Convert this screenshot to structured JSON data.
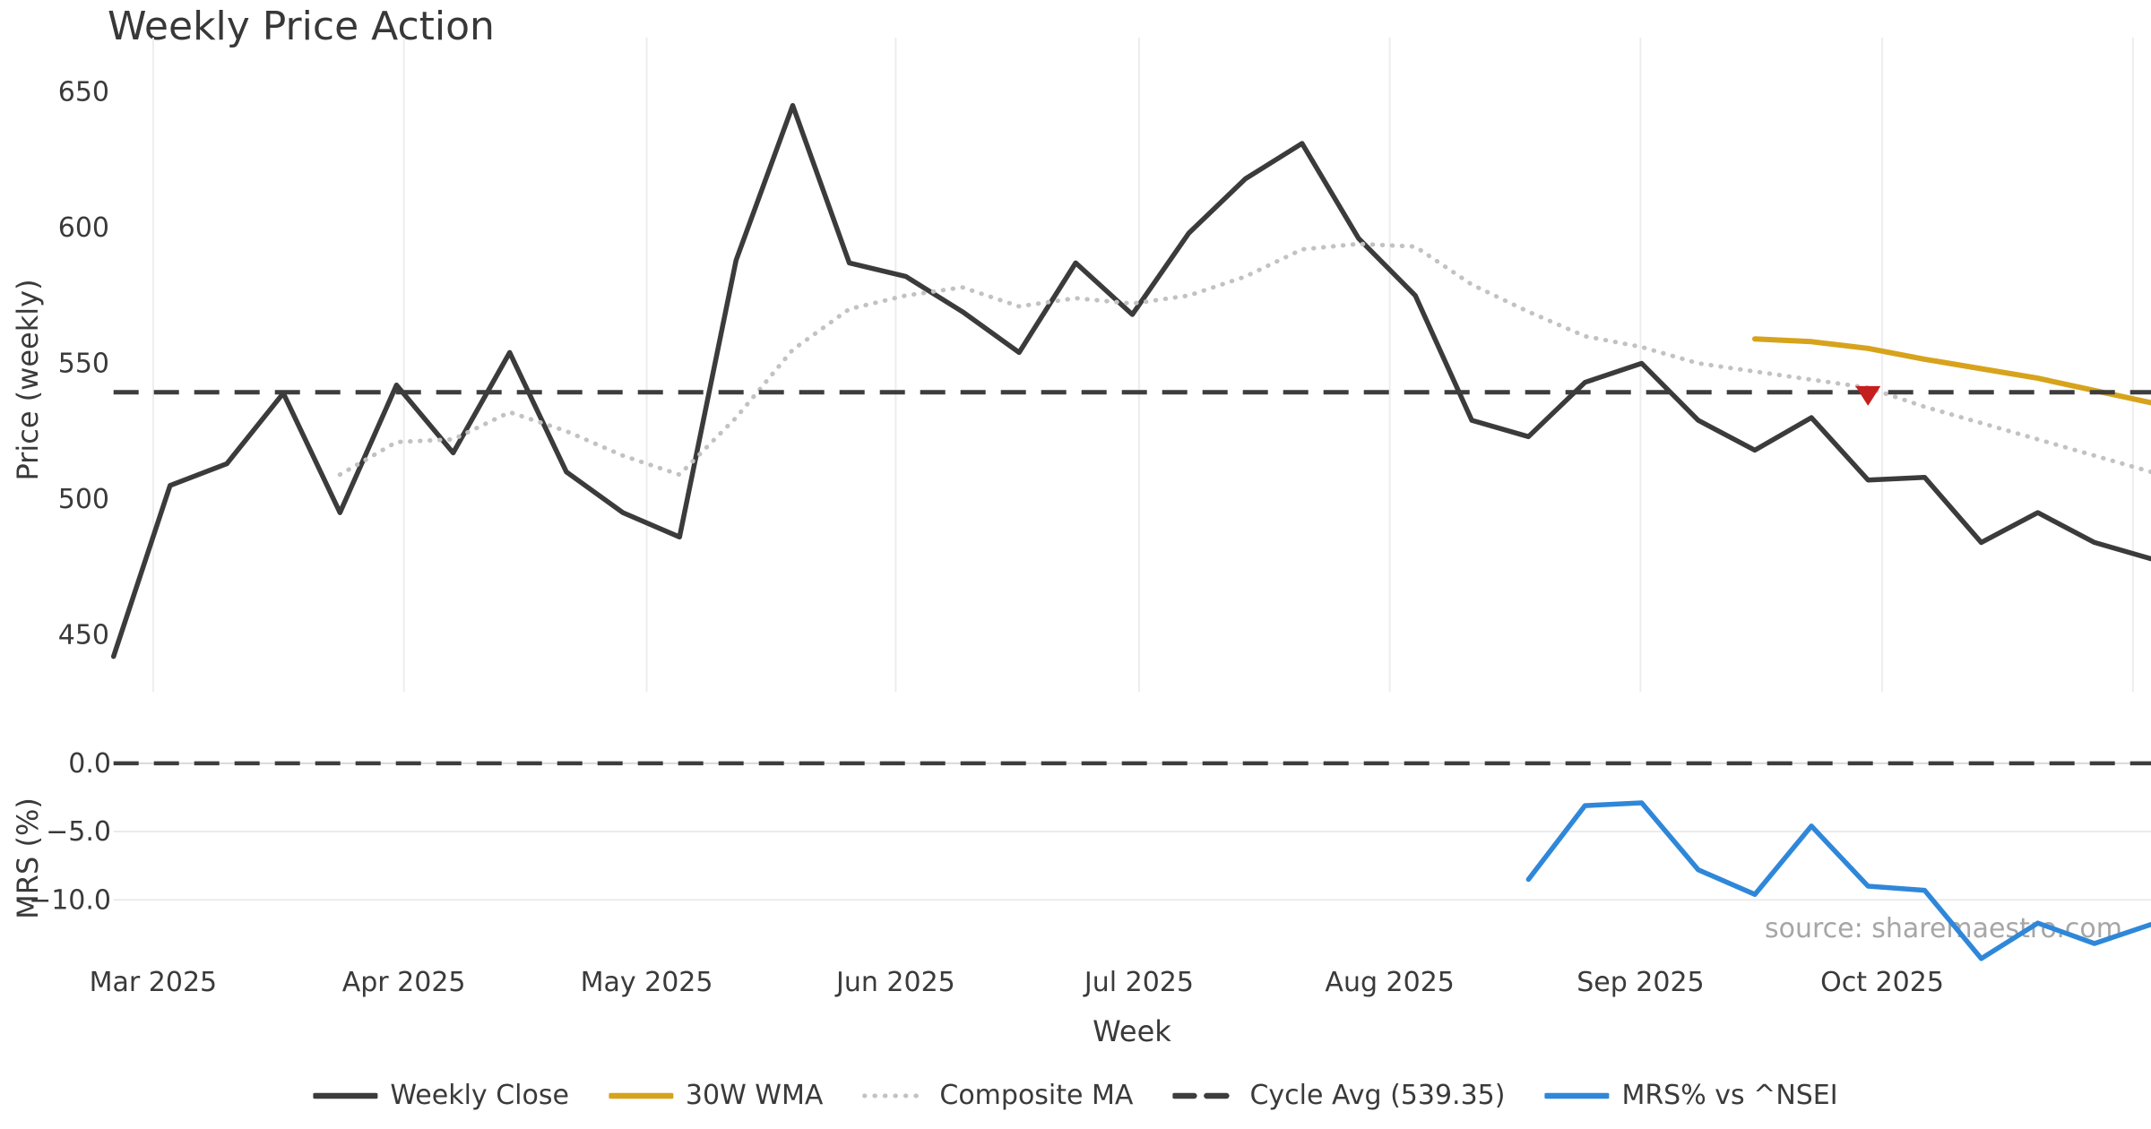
{
  "title": "Weekly Price Action",
  "source_note": "source: sharemaestro.com",
  "axes": {
    "price_label": "Price (weekly)",
    "mrs_label": "MRS (%)",
    "x_label": "Week"
  },
  "colors": {
    "weekly_close": "#3b3b3b",
    "wma30": "#d7a31c",
    "composite_ma": "#c2c2c2",
    "cycle_avg": "#3d3d3d",
    "mrs": "#2f87d9",
    "marker": "#c51f1f",
    "gridline": "#ededf1",
    "mrs_gridline": "#ebebeb",
    "mrs_zero_gridline": "#d9d9d9",
    "tick_text": "#3a3a3a"
  },
  "chart_data": {
    "type": "line",
    "title": "Weekly Price Action",
    "xlabel": "Week",
    "ylabel_price": "Price (weekly)",
    "ylabel_mrs": "MRS (%)",
    "weeks_total": 37,
    "x_ticks": [
      {
        "label": "Mar 2025",
        "week": 0.7
      },
      {
        "label": "Apr 2025",
        "week": 5.13
      },
      {
        "label": "May 2025",
        "week": 9.42
      },
      {
        "label": "Jun 2025",
        "week": 13.82
      },
      {
        "label": "Jul 2025",
        "week": 18.12
      },
      {
        "label": "Aug 2025",
        "week": 22.55
      },
      {
        "label": "Sep 2025",
        "week": 26.98
      },
      {
        "label": "Oct 2025",
        "week": 31.25
      }
    ],
    "x_extra_gridline_week": 35.68,
    "price_ticks": [
      {
        "label": "450",
        "value": 450
      },
      {
        "label": "500",
        "value": 500
      },
      {
        "label": "550",
        "value": 550
      },
      {
        "label": "600",
        "value": 600
      },
      {
        "label": "650",
        "value": 650
      }
    ],
    "price_axis_range": [
      429,
      670
    ],
    "mrs_ticks": [
      {
        "label": "0.0",
        "value": 0
      },
      {
        "label": "−5.0",
        "value": -5
      },
      {
        "label": "−10.0",
        "value": -10
      }
    ],
    "mrs_axis_range": [
      -15.1,
      3.4
    ],
    "cycle_avg": 539.35,
    "mrs_zero_dashed": true,
    "legend_position": "bottom-center",
    "grid": {
      "main_vertical": true,
      "mrs_horizontal": true
    },
    "series": [
      {
        "name": "Weekly Close",
        "style": "solid",
        "color_key": "weekly_close",
        "subplot": "main",
        "start_week": 0,
        "values": [
          442,
          505,
          513,
          539,
          495,
          542,
          517,
          554,
          510,
          495,
          486,
          588,
          645,
          587,
          582,
          569,
          554,
          587,
          568,
          598,
          618,
          631,
          596,
          575,
          529,
          523,
          543,
          550,
          529,
          518,
          530,
          507,
          508,
          484,
          495,
          484,
          478
        ]
      },
      {
        "name": "30W WMA",
        "style": "solid",
        "color_key": "wma30",
        "subplot": "main",
        "start_week": 29,
        "values": [
          559,
          558,
          555.5,
          551.5,
          548,
          544.5,
          540,
          535.5
        ]
      },
      {
        "name": "Composite MA",
        "style": "dotted",
        "color_key": "composite_ma",
        "subplot": "main",
        "start_week": 4,
        "values": [
          509,
          521,
          522,
          532,
          525,
          516,
          509,
          530,
          555,
          570,
          575,
          578,
          571,
          574,
          572,
          575,
          582,
          592,
          594,
          593,
          579,
          569,
          560,
          556,
          550,
          547,
          544,
          541,
          534,
          528,
          522,
          516,
          510
        ]
      },
      {
        "name": "Cycle Avg (539.35)",
        "style": "dashed",
        "color_key": "cycle_avg",
        "subplot": "main",
        "horizontal_value": 539.35
      },
      {
        "name": "MRS% vs ^NSEI",
        "style": "solid",
        "color_key": "mrs",
        "subplot": "mrs",
        "start_week": 25,
        "values": [
          -8.5,
          -3.1,
          -2.9,
          -7.8,
          -9.6,
          -4.6,
          -9.0,
          -9.3,
          -14.3,
          -11.7,
          -13.2,
          -11.8
        ]
      }
    ],
    "marker": {
      "shape": "triangle-down",
      "color_key": "marker",
      "week": 31,
      "price": 538
    }
  }
}
